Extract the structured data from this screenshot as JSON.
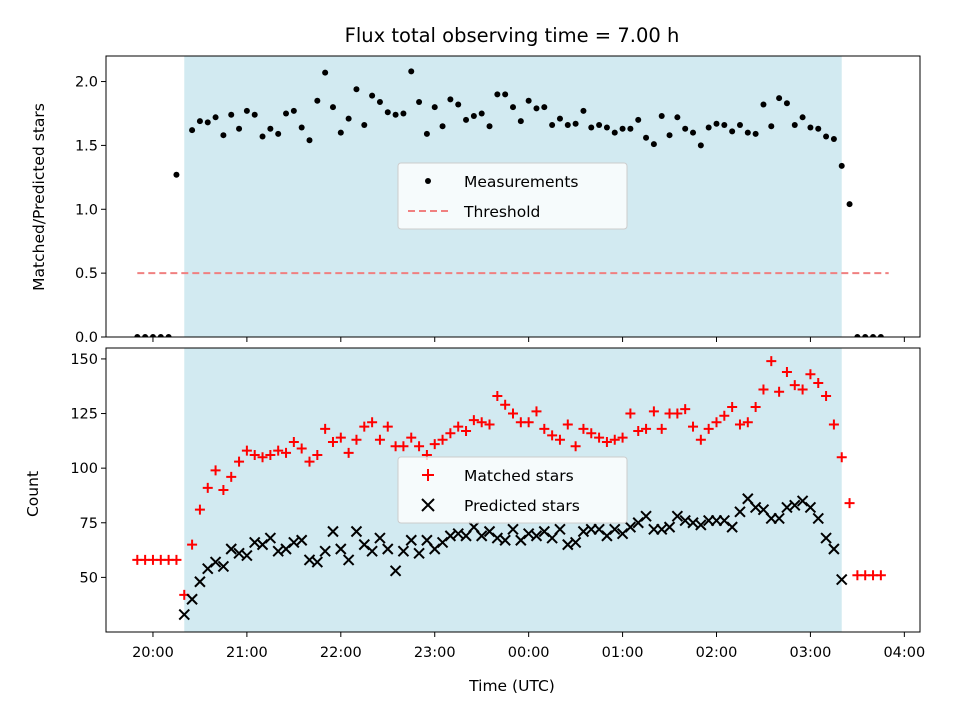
{
  "chart_data": [
    {
      "type": "scatter",
      "title": "Flux total observing time = 7.00 h",
      "xlabel": "",
      "ylabel": "Matched/Predicted stars",
      "xlim": [
        "19:30",
        "04:10"
      ],
      "ylim": [
        0,
        2.2
      ],
      "yticks": [
        "0.0",
        "0.5",
        "1.0",
        "1.5",
        "2.0"
      ],
      "shaded_interval": [
        "20:20",
        "03:20"
      ],
      "shade_color": "#add8e6",
      "legend_location": "center",
      "series": [
        {
          "name": "Measurements",
          "marker": "dot",
          "color": "#000000",
          "x": [
            "19:50",
            "19:55",
            "20:00",
            "20:05",
            "20:10",
            "20:15",
            "20:25",
            "20:30",
            "20:35",
            "20:40",
            "20:45",
            "20:50",
            "20:55",
            "21:00",
            "21:05",
            "21:10",
            "21:15",
            "21:20",
            "21:25",
            "21:30",
            "21:35",
            "21:40",
            "21:45",
            "21:50",
            "21:55",
            "22:00",
            "22:05",
            "22:10",
            "22:15",
            "22:20",
            "22:25",
            "22:30",
            "22:35",
            "22:40",
            "22:45",
            "22:50",
            "22:55",
            "23:00",
            "23:05",
            "23:10",
            "23:15",
            "23:20",
            "23:25",
            "23:30",
            "23:35",
            "23:40",
            "23:45",
            "23:50",
            "23:55",
            "00:00",
            "00:05",
            "00:10",
            "00:15",
            "00:20",
            "00:25",
            "00:30",
            "00:35",
            "00:40",
            "00:45",
            "00:50",
            "00:55",
            "01:00",
            "01:05",
            "01:10",
            "01:15",
            "01:20",
            "01:25",
            "01:30",
            "01:35",
            "01:40",
            "01:45",
            "01:50",
            "01:55",
            "02:00",
            "02:05",
            "02:10",
            "02:15",
            "02:20",
            "02:25",
            "02:30",
            "02:35",
            "02:40",
            "02:45",
            "02:50",
            "02:55",
            "03:00",
            "03:05",
            "03:10",
            "03:15",
            "03:20",
            "03:25",
            "03:30",
            "03:35",
            "03:40",
            "03:45"
          ],
          "y": [
            0,
            0,
            0,
            0,
            0,
            1.27,
            1.62,
            1.69,
            1.68,
            1.72,
            1.58,
            1.74,
            1.63,
            1.77,
            1.74,
            1.57,
            1.63,
            1.59,
            1.75,
            1.77,
            1.64,
            1.54,
            1.85,
            2.07,
            1.8,
            1.6,
            1.71,
            1.94,
            1.66,
            1.89,
            1.84,
            1.76,
            1.74,
            1.75,
            2.08,
            1.84,
            1.59,
            1.8,
            1.65,
            1.86,
            1.82,
            1.7,
            1.73,
            1.75,
            1.65,
            1.9,
            1.9,
            1.8,
            1.69,
            1.85,
            1.79,
            1.8,
            1.66,
            1.71,
            1.66,
            1.67,
            1.77,
            1.64,
            1.66,
            1.64,
            1.6,
            1.63,
            1.63,
            1.7,
            1.56,
            1.51,
            1.73,
            1.58,
            1.72,
            1.63,
            1.6,
            1.5,
            1.64,
            1.67,
            1.66,
            1.61,
            1.66,
            1.6,
            1.59,
            1.82,
            1.65,
            1.87,
            1.83,
            1.66,
            1.72,
            1.64,
            1.63,
            1.57,
            1.55,
            1.34,
            1.04,
            0,
            0,
            0,
            0
          ]
        },
        {
          "name": "Threshold",
          "style": "dashed",
          "color": "#f08080",
          "x": [
            "19:50",
            "03:50"
          ],
          "y": [
            0.5,
            0.5
          ]
        }
      ]
    },
    {
      "type": "scatter",
      "title": "",
      "xlabel": "Time (UTC)",
      "ylabel": "Count",
      "xlim": [
        "19:30",
        "04:10"
      ],
      "ylim": [
        25,
        155
      ],
      "yticks": [
        "50",
        "75",
        "100",
        "125",
        "150"
      ],
      "xticks": [
        "20:00",
        "21:00",
        "22:00",
        "23:00",
        "00:00",
        "01:00",
        "02:00",
        "03:00",
        "04:00"
      ],
      "shaded_interval": [
        "20:20",
        "03:20"
      ],
      "shade_color": "#add8e6",
      "legend_location": "center",
      "series": [
        {
          "name": "Matched stars",
          "marker": "plus",
          "color": "#ff0000",
          "x": [
            "19:50",
            "19:55",
            "20:00",
            "20:05",
            "20:10",
            "20:15",
            "20:20",
            "20:25",
            "20:30",
            "20:35",
            "20:40",
            "20:45",
            "20:50",
            "20:55",
            "21:00",
            "21:05",
            "21:10",
            "21:15",
            "21:20",
            "21:25",
            "21:30",
            "21:35",
            "21:40",
            "21:45",
            "21:50",
            "21:55",
            "22:00",
            "22:05",
            "22:10",
            "22:15",
            "22:20",
            "22:25",
            "22:30",
            "22:35",
            "22:40",
            "22:45",
            "22:50",
            "22:55",
            "23:00",
            "23:05",
            "23:10",
            "23:15",
            "23:20",
            "23:25",
            "23:30",
            "23:35",
            "23:40",
            "23:45",
            "23:50",
            "23:55",
            "00:00",
            "00:05",
            "00:10",
            "00:15",
            "00:20",
            "00:25",
            "00:30",
            "00:35",
            "00:40",
            "00:45",
            "00:50",
            "00:55",
            "01:00",
            "01:05",
            "01:10",
            "01:15",
            "01:20",
            "01:25",
            "01:30",
            "01:35",
            "01:40",
            "01:45",
            "01:50",
            "01:55",
            "02:00",
            "02:05",
            "02:10",
            "02:15",
            "02:20",
            "02:25",
            "02:30",
            "02:35",
            "02:40",
            "02:45",
            "02:50",
            "02:55",
            "03:00",
            "03:05",
            "03:10",
            "03:15",
            "03:20",
            "03:25",
            "03:30",
            "03:35",
            "03:40",
            "03:45"
          ],
          "y": [
            58,
            58,
            58,
            58,
            58,
            58,
            42,
            65,
            81,
            91,
            99,
            90,
            96,
            103,
            108,
            106,
            105,
            106,
            108,
            107,
            112,
            109,
            103,
            106,
            118,
            112,
            114,
            107,
            113,
            119,
            121,
            113,
            119,
            110,
            110,
            114,
            110,
            106,
            111,
            113,
            116,
            119,
            117,
            122,
            121,
            120,
            133,
            129,
            125,
            121,
            121,
            126,
            118,
            115,
            113,
            120,
            110,
            118,
            116,
            114,
            112,
            113,
            114,
            125,
            117,
            118,
            126,
            118,
            125,
            125,
            127,
            119,
            113,
            118,
            121,
            124,
            128,
            120,
            121,
            128,
            136,
            149,
            135,
            144,
            138,
            136,
            143,
            139,
            133,
            120,
            105,
            84,
            51,
            51,
            51,
            51
          ]
        },
        {
          "name": "Predicted stars",
          "marker": "x",
          "color": "#000000",
          "x": [
            "20:20",
            "20:25",
            "20:30",
            "20:35",
            "20:40",
            "20:45",
            "20:50",
            "20:55",
            "21:00",
            "21:05",
            "21:10",
            "21:15",
            "21:20",
            "21:25",
            "21:30",
            "21:35",
            "21:40",
            "21:45",
            "21:50",
            "21:55",
            "22:00",
            "22:05",
            "22:10",
            "22:15",
            "22:20",
            "22:25",
            "22:30",
            "22:35",
            "22:40",
            "22:45",
            "22:50",
            "22:55",
            "23:00",
            "23:05",
            "23:10",
            "23:15",
            "23:20",
            "23:25",
            "23:30",
            "23:35",
            "23:40",
            "23:45",
            "23:50",
            "23:55",
            "00:00",
            "00:05",
            "00:10",
            "00:15",
            "00:20",
            "00:25",
            "00:30",
            "00:35",
            "00:40",
            "00:45",
            "00:50",
            "00:55",
            "01:00",
            "01:05",
            "01:10",
            "01:15",
            "01:20",
            "01:25",
            "01:30",
            "01:35",
            "01:40",
            "01:45",
            "01:50",
            "01:55",
            "02:00",
            "02:05",
            "02:10",
            "02:15",
            "02:20",
            "02:25",
            "02:30",
            "02:35",
            "02:40",
            "02:45",
            "02:50",
            "02:55",
            "03:00",
            "03:05",
            "03:10",
            "03:15",
            "03:20"
          ],
          "y": [
            33,
            40,
            48,
            54,
            57,
            55,
            63,
            61,
            60,
            66,
            65,
            68,
            62,
            63,
            66,
            67,
            58,
            57,
            62,
            71,
            63,
            58,
            71,
            65,
            62,
            68,
            63,
            53,
            62,
            67,
            61,
            67,
            63,
            66,
            69,
            70,
            69,
            73,
            69,
            71,
            68,
            67,
            72,
            67,
            70,
            69,
            71,
            68,
            72,
            65,
            66,
            71,
            72,
            72,
            69,
            72,
            70,
            73,
            75,
            78,
            72,
            72,
            73,
            78,
            76,
            75,
            74,
            76,
            76,
            76,
            73,
            80,
            86,
            82,
            81,
            77,
            77,
            82,
            83,
            85,
            82,
            77,
            68,
            63,
            49
          ]
        }
      ]
    }
  ]
}
